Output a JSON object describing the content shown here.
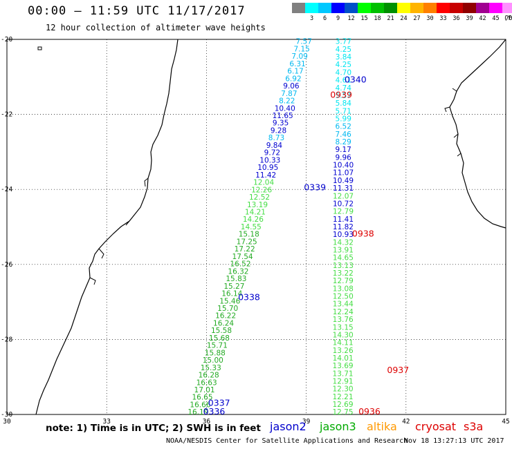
{
  "header": {
    "title": "00:00 – 11:59 UTC 11/17/2017",
    "subtitle": "12 hour collection of altimeter wave heights"
  },
  "legend": {
    "colors": [
      "#808080",
      "#00ffff",
      "#00c8ff",
      "#0000ff",
      "#0050c8",
      "#00ff00",
      "#00c000",
      "#009000",
      "#ffff00",
      "#ffb400",
      "#ff8000",
      "#ff0000",
      "#c80000",
      "#900000",
      "#a00090",
      "#ff00ff",
      "#ff90ff",
      "#000000"
    ],
    "labels": [
      "3",
      "6",
      "9",
      "12",
      "15",
      "18",
      "21",
      "24",
      "27",
      "30",
      "33",
      "36",
      "39",
      "42",
      "45",
      "70"
    ],
    "unit": "(ft)"
  },
  "axes": {
    "lon_ticks": [
      "30",
      "33",
      "36",
      "39",
      "42",
      "45"
    ],
    "lat_ticks": [
      "-20",
      "-22",
      "-24",
      "-26",
      "-28",
      "-30"
    ]
  },
  "passes": [
    {
      "label": "0340",
      "color": "#0000cc",
      "lon": 40.15,
      "lat": -21.08
    },
    {
      "label": "0939",
      "color": "#dd0000",
      "lon": 39.72,
      "lat": -21.48
    },
    {
      "label": "0339",
      "color": "#0000cc",
      "lon": 38.93,
      "lat": -23.95
    },
    {
      "label": "0938",
      "color": "#dd0000",
      "lon": 40.38,
      "lat": -25.18
    },
    {
      "label": "0338",
      "color": "#0000cc",
      "lon": 36.95,
      "lat": -26.88
    },
    {
      "label": "0937",
      "color": "#dd0000",
      "lon": 41.43,
      "lat": -28.82
    },
    {
      "label": "0337",
      "color": "#0000cc",
      "lon": 36.05,
      "lat": -29.7
    },
    {
      "label": "0336",
      "color": "#0000cc",
      "lon": 35.9,
      "lat": -29.93
    },
    {
      "label": "0936",
      "color": "#dd0000",
      "lon": 40.57,
      "lat": -29.93
    }
  ],
  "tracks": [
    {
      "name": "desc-a",
      "values": [
        "3.77",
        "4.25",
        "3.84",
        "4.25",
        "4.70",
        "4.61",
        "4.74",
        "5.57",
        "5.84",
        "5.71",
        "5.99",
        "6.52",
        "7.46",
        "8.29",
        "9.17",
        "9.96",
        "10.40",
        "11.07",
        "10.49",
        "11.31",
        "12.07",
        "10.72",
        "12.79",
        "11.41",
        "11.82",
        "10.93",
        "14.32",
        "13.91",
        "14.65",
        "13.13",
        "13.22",
        "12.79",
        "13.08",
        "12.50",
        "13.44",
        "12.24",
        "13.76",
        "13.15",
        "14.30",
        "14.11",
        "13.26",
        "14.01",
        "13.69",
        "13.71",
        "12.91",
        "12.30",
        "12.21",
        "12.69",
        "12.75"
      ]
    },
    {
      "name": "asc-a",
      "values": [
        "7.57",
        "7.15",
        "7.09",
        "6.31",
        "6.17",
        "6.92",
        "9.06",
        "7.87",
        "8.22",
        "10.40",
        "11.65",
        "9.35",
        "9.28",
        "8.73",
        "9.84",
        "9.72",
        "10.33",
        "10.95",
        "11.42",
        "12.04",
        "12.26",
        "12.52",
        "13.19",
        "14.21",
        "14.26",
        "14.55",
        "15.18",
        "17.25",
        "17.22",
        "17.54",
        "16.52",
        "16.32",
        "15.83",
        "15.27",
        "16.14",
        "15.46",
        "15.70",
        "16.22",
        "16.24",
        "15.58",
        "15.68",
        "15.71",
        "15.88",
        "15.00",
        "15.33",
        "16.28",
        "16.63",
        "17.01",
        "16.65",
        "16.66",
        "16.19"
      ]
    }
  ],
  "footer": {
    "note": "note: 1) Time is in UTC; 2) SWH is in feet",
    "satellites": [
      {
        "name": "jason2",
        "color": "#0000cc"
      },
      {
        "name": "jason3",
        "color": "#00aa00"
      },
      {
        "name": "altika",
        "color": "#ff9900"
      },
      {
        "name": "cryosat",
        "color": "#dd0000"
      },
      {
        "name": "s3a",
        "color": "#dd0000"
      }
    ],
    "credit": "NOAA/NESDIS Center for Satellite Applications and Research",
    "timestamp": "Nov 18 13:27:13 UTC 2017"
  }
}
